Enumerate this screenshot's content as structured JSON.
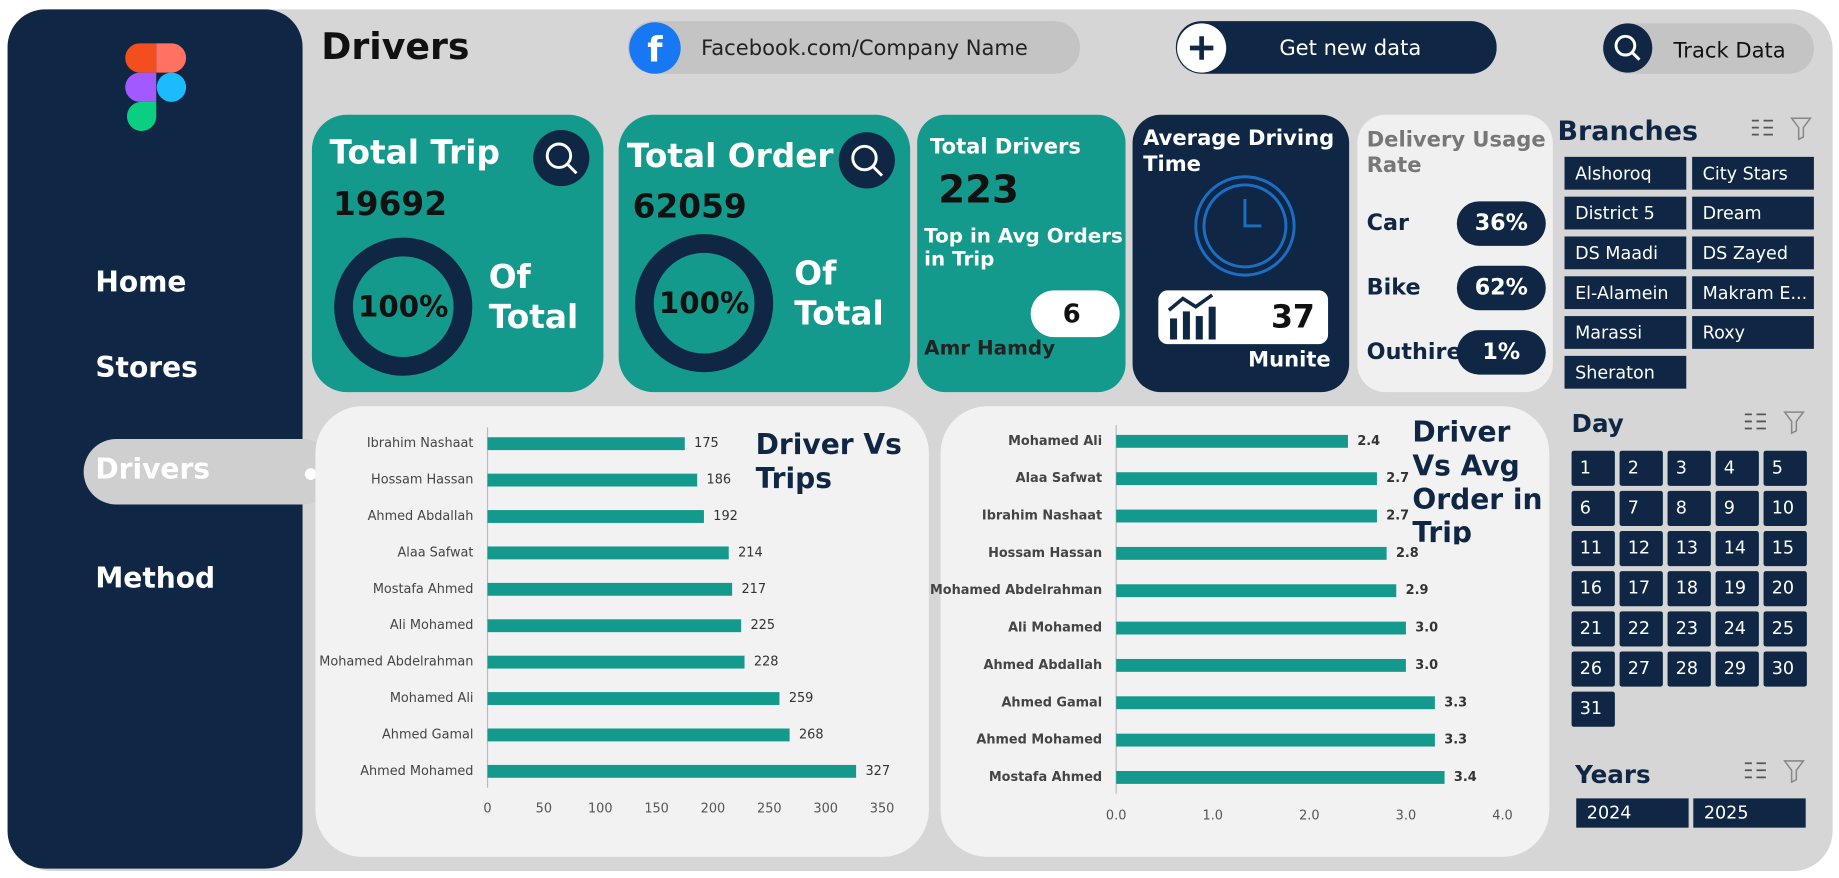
{
  "header": {
    "title": "Drivers",
    "facebook": "Facebook.com/Company Name",
    "get_data": "Get new data",
    "track": "Track Data"
  },
  "nav": [
    "Home",
    "Stores",
    "Drivers",
    "Method"
  ],
  "kpis": {
    "total_trip": {
      "label": "Total Trip",
      "value": "19692",
      "percent": "100%",
      "note": "Of Total"
    },
    "total_order": {
      "label": "Total Order",
      "value": "62059",
      "percent": "100%",
      "note": "Of Total"
    },
    "total_drivers": {
      "label": "Total Drivers",
      "value": "223",
      "top_label": "Top in Avg Orders in Trip",
      "top_value": "6",
      "top_name": "Amr Hamdy"
    },
    "avg_time": {
      "label": "Average Driving Time",
      "value": "37",
      "unit": "Munite"
    },
    "usage": {
      "label": "Delivery Usage Rate",
      "rows": [
        [
          "Car",
          "36%"
        ],
        [
          "Bike",
          "62%"
        ],
        [
          "Outhire",
          "1%"
        ]
      ]
    }
  },
  "chart_data": [
    {
      "type": "bar",
      "orientation": "horizontal",
      "title": "Driver Vs Trips",
      "categories": [
        "Ibrahim Nashaat",
        "Hossam Hassan",
        "Ahmed Abdallah",
        "Alaa Safwat",
        "Mostafa Ahmed",
        "Ali Mohamed",
        "Mohamed Abdelrahman",
        "Mohamed Ali",
        "Ahmed Gamal",
        "Ahmed Mohamed"
      ],
      "values": [
        175,
        186,
        192,
        214,
        217,
        225,
        228,
        259,
        268,
        327
      ],
      "color": "#139a8c",
      "xlim": [
        0,
        350
      ],
      "xticks": [
        0,
        50,
        100,
        150,
        200,
        250,
        300,
        350
      ]
    },
    {
      "type": "bar",
      "orientation": "horizontal",
      "title": "Driver Vs Avg Order in Trip",
      "categories": [
        "Mohamed Ali",
        "Alaa Safwat",
        "Ibrahim Nashaat",
        "Hossam Hassan",
        "Mohamed Abdelrahman",
        "Ali Mohamed",
        "Ahmed Abdallah",
        "Ahmed Gamal",
        "Ahmed Mohamed",
        "Mostafa Ahmed"
      ],
      "values": [
        2.4,
        2.7,
        2.7,
        2.8,
        2.9,
        3,
        3,
        3.3,
        3.3,
        3.4
      ],
      "value_labels": [
        "2.4",
        "2.7",
        "2.7",
        "2.8",
        "2.9",
        "3.0",
        "3.0",
        "3.3",
        "3.3",
        "3.4"
      ],
      "color": "#139a8c",
      "xlim": [
        0,
        4
      ],
      "xticks": [
        {
          "value": 0,
          "label": "0.0"
        },
        {
          "value": 1,
          "label": "1.0"
        },
        {
          "value": 2,
          "label": "2.0"
        },
        {
          "value": 3,
          "label": "3.0"
        },
        {
          "value": 4,
          "label": "4.0"
        }
      ]
    }
  ],
  "slicers": {
    "branches": {
      "title": "Branches",
      "items": [
        "Alshoroq",
        "City Stars",
        "District 5",
        "Dream",
        "DS Maadi",
        "DS Zayed",
        "El-Alamein",
        "Makram E...",
        "Marassi",
        "Roxy",
        "Sheraton"
      ]
    },
    "day": {
      "title": "Day",
      "items": [
        1,
        2,
        3,
        4,
        5,
        6,
        7,
        8,
        9,
        10,
        11,
        12,
        13,
        14,
        15,
        16,
        17,
        18,
        19,
        20,
        21,
        22,
        23,
        24,
        25,
        26,
        27,
        28,
        29,
        30,
        31
      ]
    },
    "years": {
      "title": "Years",
      "items": [
        "2024",
        "2025"
      ]
    }
  }
}
